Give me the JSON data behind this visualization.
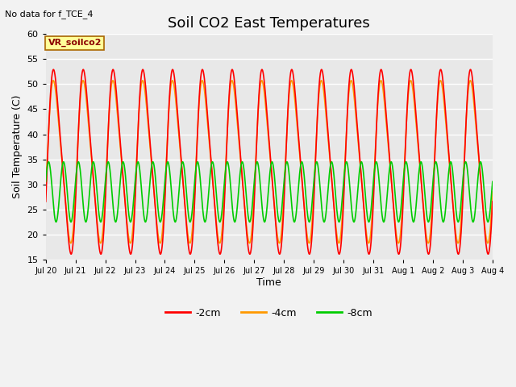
{
  "title": "Soil CO2 East Temperatures",
  "ylabel": "Soil Temperature (C)",
  "xlabel": "Time",
  "top_left_text": "No data for f_TCE_4",
  "box_label": "VR_soilco2",
  "ylim": [
    15,
    60
  ],
  "xtick_labels": [
    "Jul 20",
    "Jul 21",
    "Jul 22",
    "Jul 23",
    "Jul 24",
    "Jul 25",
    "Jul 26",
    "Jul 27",
    "Jul 28",
    "Jul 29",
    "Jul 30",
    "Jul 31",
    "Aug 1",
    "Aug 2",
    "Aug 3",
    "Aug 4"
  ],
  "line_colors_2cm": "#ff0000",
  "line_colors_4cm": "#ff9900",
  "line_colors_8cm": "#00cc00",
  "legend_labels": [
    "-2cm",
    "-4cm",
    "-8cm"
  ],
  "legend_colors": [
    "#ff0000",
    "#ff9900",
    "#00cc00"
  ],
  "fig_bg": "#f2f2f2",
  "plot_bg": "#e8e8e8",
  "title_fontsize": 13,
  "axis_fontsize": 9,
  "tick_fontsize": 8,
  "grid_color": "#ffffff",
  "red_mean": 34.5,
  "red_amp_base": 17.5,
  "red_amp2": 3.0,
  "orange_mean": 34.5,
  "orange_amp_base": 15.5,
  "orange_amp2": 2.5,
  "green_mean": 28.5,
  "green_amp": 6.0,
  "red_phase": -0.35,
  "orange_phase": -0.3,
  "green_phase": 0.35,
  "green_freq_mult": 2.0,
  "linewidth": 1.2
}
